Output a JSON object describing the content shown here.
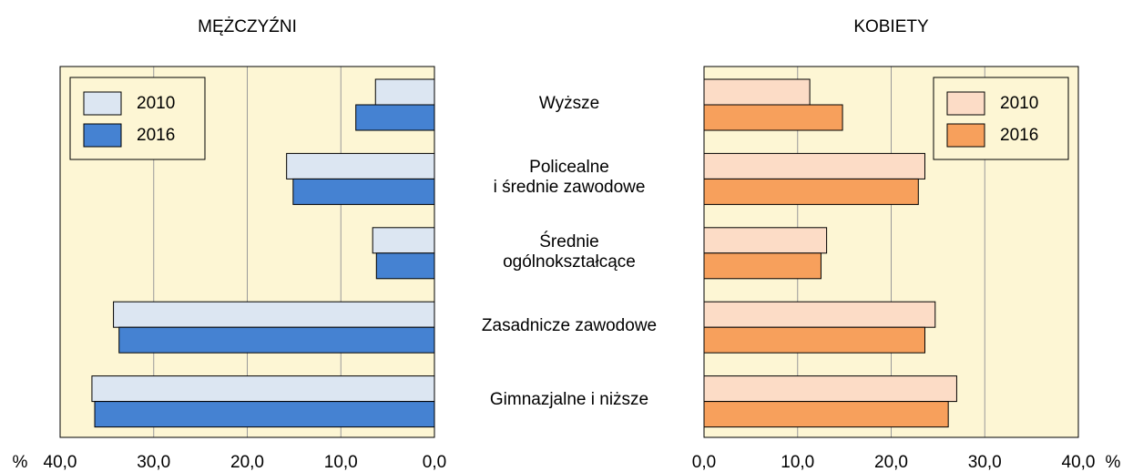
{
  "categories": [
    "Wyższe",
    "Policealne\ni średnie zawodowe",
    "Średnie\nogólnokształcące",
    "Zasadnicze zawodowe",
    "Gimnazjalne i niższe"
  ],
  "chart_data": [
    {
      "type": "bar",
      "orientation": "horizontal",
      "title": "MĘŻCZYŹNI",
      "xlabel": "%",
      "xlim": [
        40,
        0
      ],
      "xticks": [
        {
          "value": 40,
          "label": "40,0"
        },
        {
          "value": 30,
          "label": "30,0"
        },
        {
          "value": 20,
          "label": "20,0"
        },
        {
          "value": 10,
          "label": "10,0"
        },
        {
          "value": 0,
          "label": "0,0"
        }
      ],
      "grid": true,
      "legend": "upper left",
      "series": [
        {
          "name": "2010",
          "color": "#dce6f2",
          "values": [
            6.3,
            15.8,
            6.6,
            34.3,
            36.6
          ]
        },
        {
          "name": "2016",
          "color": "#4582d2",
          "values": [
            8.4,
            15.1,
            6.2,
            33.7,
            36.3
          ]
        }
      ]
    },
    {
      "type": "bar",
      "orientation": "horizontal",
      "title": "KOBIETY",
      "xlabel": "%",
      "xlim": [
        0,
        40
      ],
      "xticks": [
        {
          "value": 0,
          "label": "0,0"
        },
        {
          "value": 10,
          "label": "10,0"
        },
        {
          "value": 20,
          "label": "20,0"
        },
        {
          "value": 30,
          "label": "30,0"
        },
        {
          "value": 40,
          "label": "40,0"
        }
      ],
      "grid": true,
      "legend": "upper right",
      "series": [
        {
          "name": "2010",
          "color": "#fcdcc6",
          "values": [
            11.3,
            23.6,
            13.1,
            24.7,
            27.0
          ]
        },
        {
          "name": "2016",
          "color": "#f7a05c",
          "values": [
            14.8,
            22.9,
            12.5,
            23.6,
            26.1
          ]
        }
      ]
    }
  ]
}
